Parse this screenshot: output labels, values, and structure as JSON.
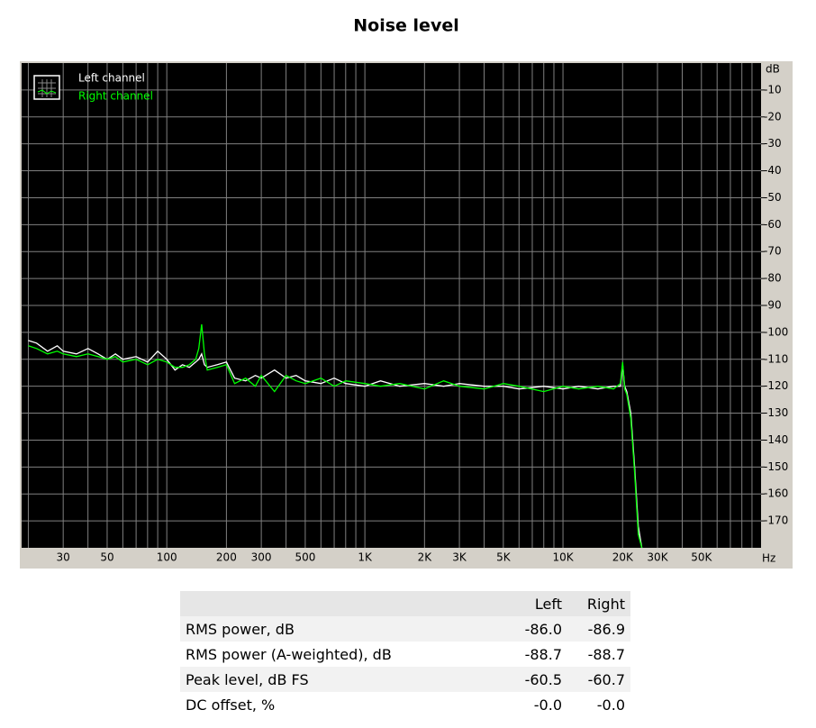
{
  "chart_data": {
    "type": "line",
    "title": "Noise level",
    "x_scale": "log",
    "xlim": [
      18.5,
      100000
    ],
    "ylim": [
      -180,
      0
    ],
    "x_unit": "Hz",
    "y_unit": "dB",
    "xticks": [
      30,
      50,
      100,
      200,
      300,
      500,
      {
        "value": 1000,
        "label": "1K"
      },
      {
        "value": 2000,
        "label": "2K"
      },
      {
        "value": 3000,
        "label": "3K"
      },
      {
        "value": 5000,
        "label": "5K"
      },
      {
        "value": 10000,
        "label": "10K"
      },
      {
        "value": 20000,
        "label": "20K"
      },
      {
        "value": 30000,
        "label": "30K"
      },
      {
        "value": 50000,
        "label": "50K"
      }
    ],
    "xminorticks": [
      20,
      40,
      60,
      70,
      80,
      90,
      400,
      600,
      700,
      800,
      900,
      4000,
      6000,
      7000,
      8000,
      9000,
      40000,
      60000,
      70000,
      80000,
      90000
    ],
    "yticks": [
      -10,
      -20,
      -30,
      -40,
      -50,
      -60,
      -70,
      -80,
      -90,
      -100,
      -110,
      -120,
      -130,
      -140,
      -150,
      -160,
      -170
    ],
    "grid": true,
    "legend": "top-left",
    "x": [
      20,
      22,
      25,
      28,
      30,
      35,
      40,
      45,
      50,
      55,
      60,
      70,
      80,
      90,
      100,
      110,
      120,
      130,
      140,
      145,
      150,
      155,
      160,
      180,
      200,
      220,
      250,
      280,
      300,
      350,
      400,
      450,
      500,
      600,
      700,
      800,
      1000,
      1200,
      1500,
      2000,
      2500,
      3000,
      4000,
      5000,
      6000,
      8000,
      10000,
      12000,
      15000,
      18000,
      19500,
      20000,
      20500,
      21000,
      22000,
      23000,
      24000,
      25000
    ],
    "series": [
      {
        "name": "Left channel",
        "color": "#ffffff",
        "values": [
          -103,
          -104,
          -107,
          -105,
          -107,
          -108,
          -106,
          -108,
          -110,
          -108,
          -110,
          -109,
          -111,
          -107,
          -110,
          -114,
          -112,
          -113,
          -111,
          -110,
          -108,
          -112,
          -113,
          -112,
          -111,
          -117,
          -118,
          -116,
          -117,
          -114,
          -117,
          -116,
          -118,
          -119,
          -117,
          -119,
          -120,
          -118,
          -120,
          -119,
          -120,
          -119,
          -120,
          -120,
          -121,
          -120,
          -121,
          -120,
          -121,
          -120,
          -120,
          -112,
          -120,
          -122,
          -130,
          -150,
          -172,
          -180
        ]
      },
      {
        "name": "Right channel",
        "color": "#00ff00",
        "values": [
          -105,
          -106,
          -108,
          -107,
          -108,
          -109,
          -108,
          -109,
          -110,
          -109,
          -111,
          -110,
          -112,
          -110,
          -111,
          -113,
          -113,
          -112,
          -110,
          -106,
          -97,
          -108,
          -114,
          -113,
          -112,
          -119,
          -117,
          -120,
          -116,
          -122,
          -116,
          -118,
          -119,
          -117,
          -120,
          -118,
          -119,
          -120,
          -119,
          -121,
          -118,
          -120,
          -121,
          -119,
          -120,
          -122,
          -120,
          -121,
          -120,
          -121,
          -119,
          -111,
          -121,
          -123,
          -132,
          -152,
          -175,
          -180
        ]
      }
    ]
  },
  "table": {
    "header": [
      "Left",
      "Right"
    ],
    "rows": [
      [
        "RMS power, dB",
        "-86.0",
        "-86.9"
      ],
      [
        "RMS power (A-weighted), dB",
        "-88.7",
        "-88.7"
      ],
      [
        "Peak level, dB FS",
        "-60.5",
        "-60.7"
      ],
      [
        "DC offset, %",
        "-0.0",
        "-0.0"
      ]
    ]
  }
}
